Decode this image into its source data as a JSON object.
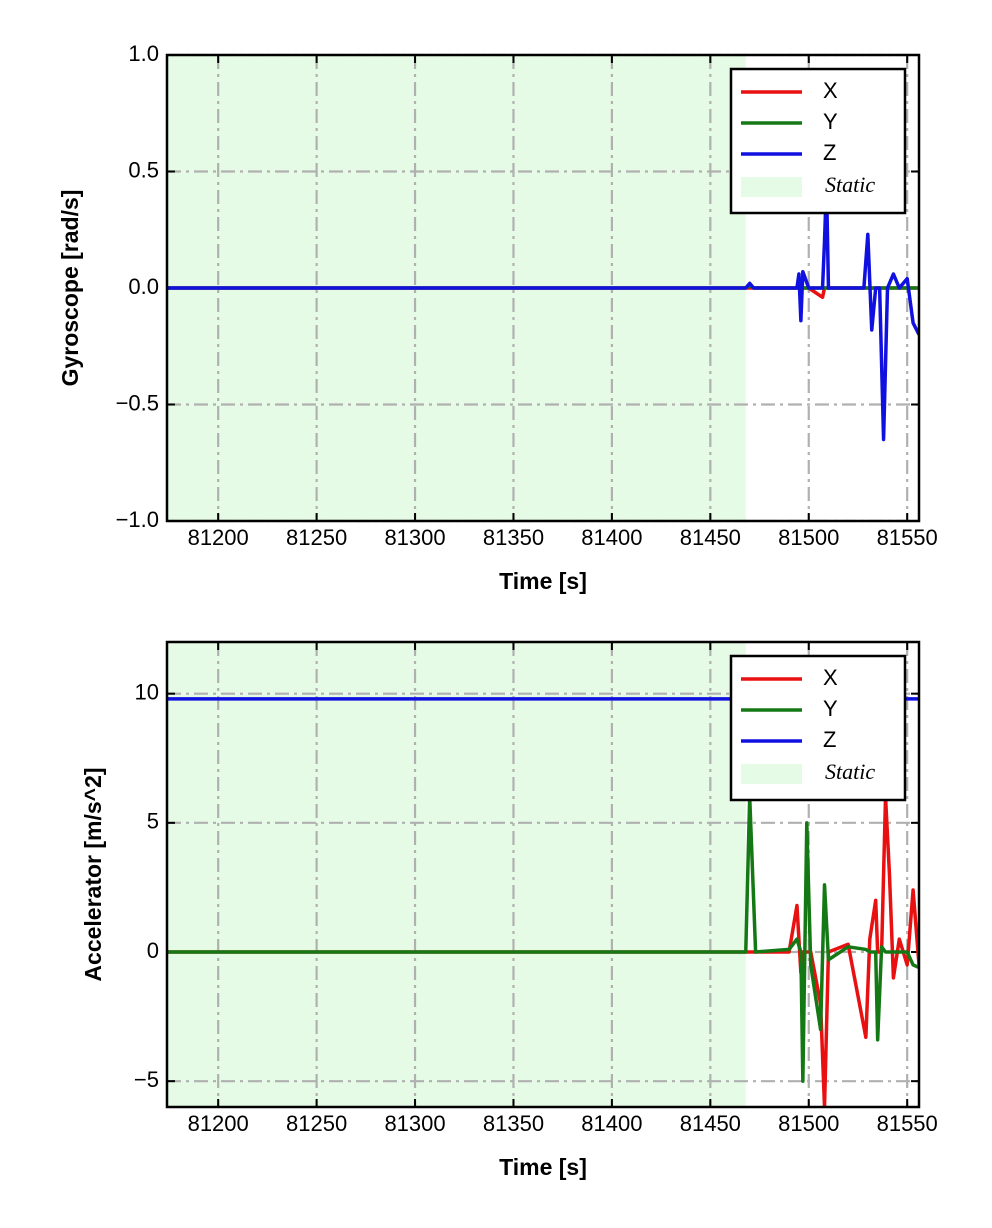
{
  "chart_data": [
    {
      "type": "line",
      "xlabel": "Time [s]",
      "ylabel": "Gyroscope [rad/s]",
      "xlim": [
        81174,
        81556
      ],
      "xticks": [
        81200,
        81250,
        81300,
        81350,
        81400,
        81450,
        81500,
        81550
      ],
      "ylim": [
        -1,
        1
      ],
      "yticks": [
        {
          "value": -1,
          "label": "−1.0"
        },
        {
          "value": -0.5,
          "label": "−0.5"
        },
        {
          "value": 0,
          "label": "0.0"
        },
        {
          "value": 0.5,
          "label": "0.5"
        },
        {
          "value": 1,
          "label": "1.0"
        }
      ],
      "grid": true,
      "legend": "upper right",
      "static_span": {
        "name": "Static",
        "start": 81174,
        "end": 81468,
        "color": "#e6fbe6"
      },
      "x": [
        81174,
        81468,
        81470,
        81472,
        81494,
        81495,
        81496,
        81497,
        81500,
        81507,
        81508,
        81509,
        81510,
        81528,
        81530,
        81532,
        81534,
        81536,
        81538,
        81540,
        81543,
        81546,
        81550,
        81553,
        81556
      ],
      "series": [
        {
          "name": "X",
          "color": "#e81010",
          "values": [
            0,
            0,
            0,
            0,
            0,
            0,
            0,
            0,
            0,
            -0.04,
            0,
            0,
            0,
            0,
            0,
            0,
            0,
            0,
            0,
            0,
            0,
            0,
            0,
            0,
            0
          ]
        },
        {
          "name": "Y",
          "color": "#147814",
          "values": [
            0,
            0,
            0.01,
            0,
            0,
            0,
            0,
            0,
            0,
            0,
            0,
            0,
            0,
            0,
            0,
            0,
            0,
            0,
            0,
            0,
            0,
            0,
            0,
            0,
            0
          ]
        },
        {
          "name": "Z",
          "color": "#1010e0",
          "values": [
            0,
            0,
            0.02,
            0,
            0,
            0.06,
            -0.14,
            0.07,
            0,
            0,
            0.2,
            0.45,
            0,
            0,
            0.23,
            -0.18,
            0,
            0,
            -0.65,
            0,
            0.06,
            0,
            0.04,
            -0.15,
            -0.2
          ]
        }
      ]
    },
    {
      "type": "line",
      "xlabel": "Time [s]",
      "ylabel": "Accelerator [m/s^2]",
      "xlim": [
        81174,
        81556
      ],
      "xticks": [
        81200,
        81250,
        81300,
        81350,
        81400,
        81450,
        81500,
        81550
      ],
      "ylim": [
        -6,
        12
      ],
      "yticks": [
        {
          "value": -5,
          "label": "−5"
        },
        0,
        5,
        10
      ],
      "grid": true,
      "legend": "upper right",
      "static_span": {
        "name": "Static",
        "start": 81174,
        "end": 81468,
        "color": "#e6fbe6"
      },
      "x": [
        81174,
        81468,
        81470,
        81473,
        81490,
        81494,
        81496,
        81497,
        81499,
        81501,
        81506,
        81508,
        81510,
        81520,
        81529,
        81531,
        81534,
        81535,
        81537,
        81539,
        81541,
        81543,
        81546,
        81550,
        81553,
        81556
      ],
      "series": [
        {
          "name": "X",
          "color": "#e81010",
          "values": [
            0,
            0,
            0,
            0,
            0,
            1.8,
            -0.8,
            0,
            0,
            0,
            -2.0,
            -6.0,
            0,
            0.3,
            -3.3,
            0.5,
            2.0,
            0,
            0,
            6.0,
            3.0,
            -1.0,
            0.5,
            -0.5,
            2.4,
            -0.5
          ]
        },
        {
          "name": "Y",
          "color": "#147814",
          "values": [
            0,
            0,
            6.0,
            0,
            0.1,
            0.5,
            0,
            -5.0,
            5.0,
            -0.5,
            -3.0,
            2.6,
            -0.3,
            0.2,
            0.1,
            0,
            0,
            -3.4,
            0.2,
            0,
            0,
            0,
            0,
            0,
            -0.5,
            -0.6
          ]
        },
        {
          "name": "Z",
          "color": "#1010e0",
          "values": [
            9.8,
            9.8,
            9.8,
            9.8,
            9.8,
            9.8,
            9.8,
            9.8,
            9.8,
            9.8,
            9.8,
            9.8,
            9.8,
            9.8,
            9.8,
            9.8,
            9.8,
            9.8,
            9.8,
            9.8,
            9.8,
            9.8,
            9.8,
            9.8,
            9.8,
            9.8
          ]
        }
      ]
    }
  ]
}
